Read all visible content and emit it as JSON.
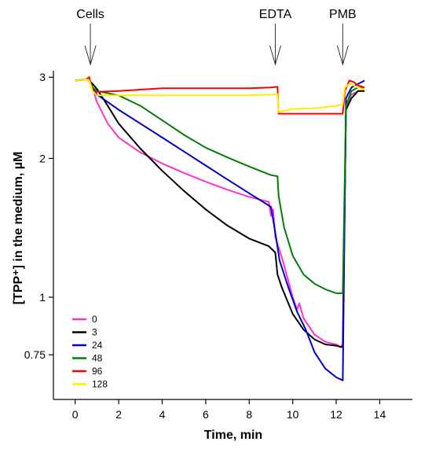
{
  "chart_data": {
    "type": "line",
    "xlabel": "Time, min",
    "ylabel": "[TPP⁺] in the medium, µM",
    "xlim": [
      -1,
      15.5
    ],
    "ylim": [
      0.6,
      3.05
    ],
    "y_scale": "log",
    "grid": false,
    "legend_position": "bottom-left",
    "x_ticks": [
      0,
      2,
      4,
      6,
      8,
      10,
      12,
      14
    ],
    "x_tick_labels": [
      "0",
      "2",
      "4",
      "6",
      "8",
      "10",
      "12",
      "14"
    ],
    "y_ticks": [
      0.75,
      1,
      2,
      3
    ],
    "y_tick_labels": [
      "0.75",
      "1",
      "2",
      "3"
    ],
    "annotations": [
      {
        "label": "Cells",
        "x": 0.7
      },
      {
        "label": "EDTA",
        "x": 9.2
      },
      {
        "label": "PMB",
        "x": 12.3
      }
    ],
    "series": [
      {
        "name": "0",
        "color": "#ff33cc",
        "x": [
          0,
          0.5,
          0.65,
          0.8,
          1,
          1.5,
          2,
          3,
          4,
          5,
          6,
          7,
          8,
          8.9,
          9.0,
          9.1,
          9.2,
          9.5,
          10,
          10.2,
          10.3,
          10.5,
          11,
          11.5,
          12,
          12.2,
          12.3,
          12.45,
          12.7,
          13,
          13.3
        ],
        "y": [
          2.95,
          2.97,
          2.95,
          2.85,
          2.65,
          2.38,
          2.22,
          2.06,
          1.95,
          1.86,
          1.78,
          1.71,
          1.65,
          1.61,
          1.5,
          1.55,
          1.35,
          1.22,
          1.0,
          0.94,
          0.97,
          0.9,
          0.83,
          0.8,
          0.79,
          0.78,
          0.79,
          2.6,
          2.75,
          2.8,
          2.8
        ]
      },
      {
        "name": "3",
        "color": "#000000",
        "x": [
          0,
          0.5,
          0.65,
          0.8,
          1,
          1.5,
          2,
          3,
          4,
          5,
          6,
          7,
          8,
          8.9,
          9.2,
          9.3,
          9.5,
          10,
          10.5,
          11,
          11.5,
          12,
          12.2,
          12.3,
          12.45,
          12.7,
          13,
          13.3
        ],
        "y": [
          2.95,
          2.97,
          2.95,
          2.9,
          2.83,
          2.6,
          2.38,
          2.1,
          1.88,
          1.7,
          1.55,
          1.43,
          1.34,
          1.29,
          1.25,
          1.12,
          1.05,
          0.92,
          0.85,
          0.81,
          0.79,
          0.785,
          0.78,
          0.78,
          2.55,
          2.7,
          2.8,
          2.8
        ]
      },
      {
        "name": "24",
        "color": "#0000cc",
        "x": [
          0,
          0.5,
          0.65,
          0.8,
          1,
          1.5,
          2,
          3,
          4,
          5,
          6,
          7,
          8,
          9.0,
          9.2,
          9.4,
          9.8,
          10.2,
          10.6,
          11,
          11.5,
          12,
          12.3,
          12.45,
          12.7,
          13,
          13.3
        ],
        "y": [
          2.95,
          2.97,
          2.95,
          2.85,
          2.75,
          2.65,
          2.55,
          2.38,
          2.22,
          2.07,
          1.93,
          1.8,
          1.68,
          1.57,
          1.38,
          1.2,
          1.05,
          0.93,
          0.85,
          0.76,
          0.7,
          0.67,
          0.66,
          2.7,
          2.85,
          2.9,
          2.95
        ]
      },
      {
        "name": "48",
        "color": "#007f00",
        "x": [
          0,
          0.5,
          0.65,
          0.8,
          1,
          1.5,
          2,
          3,
          4,
          5,
          6,
          7,
          8,
          9.0,
          9.3,
          9.35,
          9.6,
          10,
          10.5,
          11,
          11.5,
          12,
          12.3,
          12.45,
          12.7,
          13,
          13.3
        ],
        "y": [
          2.95,
          2.97,
          2.95,
          2.85,
          2.8,
          2.77,
          2.74,
          2.6,
          2.42,
          2.25,
          2.11,
          2.01,
          1.92,
          1.84,
          1.83,
          1.66,
          1.42,
          1.23,
          1.12,
          1.07,
          1.04,
          1.02,
          1.02,
          2.6,
          2.8,
          2.85,
          2.85
        ]
      },
      {
        "name": "96",
        "color": "#ff0000",
        "x": [
          0,
          0.5,
          0.65,
          0.8,
          1,
          2,
          3,
          4,
          5,
          6,
          7,
          8,
          9,
          9.3,
          9.35,
          10,
          11,
          12,
          12.3,
          12.4,
          12.6,
          12.8,
          13,
          13.3
        ],
        "y": [
          2.95,
          2.97,
          3.0,
          2.8,
          2.79,
          2.8,
          2.82,
          2.84,
          2.84,
          2.84,
          2.84,
          2.84,
          2.85,
          2.86,
          2.5,
          2.5,
          2.5,
          2.5,
          2.5,
          2.8,
          2.95,
          2.93,
          2.88,
          2.85
        ]
      },
      {
        "name": "128",
        "color": "#ffee00",
        "x": [
          0,
          0.5,
          0.65,
          0.8,
          1,
          2,
          3,
          4,
          5,
          6,
          7,
          8,
          9,
          9.3,
          9.35,
          10,
          11,
          12,
          12.3,
          12.4,
          12.6,
          12.8,
          13,
          13.3
        ],
        "y": [
          2.95,
          2.97,
          2.95,
          2.8,
          2.74,
          2.74,
          2.74,
          2.74,
          2.74,
          2.74,
          2.74,
          2.74,
          2.75,
          2.76,
          2.52,
          2.56,
          2.57,
          2.6,
          2.62,
          2.85,
          2.9,
          2.88,
          2.85,
          2.82
        ]
      }
    ]
  }
}
